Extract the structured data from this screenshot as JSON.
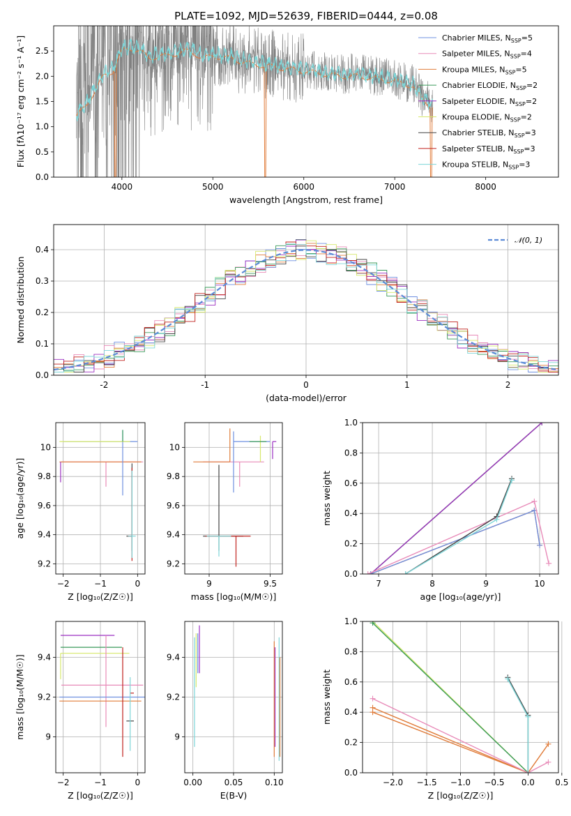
{
  "chart_data": [
    {
      "type": "line",
      "title": "PLATE=1092, MJD=52639, FIBERID=0444, z=0.08",
      "xlabel": "wavelength [Angstrom, rest frame]",
      "ylabel": "Flux [f$_\\lambda$10$^{-17}$ erg cm$^{-2}$ s$^{-1}$ A$^{-1}$]",
      "ylabel_display": "Flux [fλ10⁻¹⁷ erg cm⁻² s⁻¹ A⁻¹]",
      "xlim": [
        3250,
        8800
      ],
      "ylim": [
        0,
        3.0
      ],
      "xticks": [
        4000,
        5000,
        6000,
        7000,
        8000
      ],
      "yticks": [
        0.0,
        0.5,
        1.0,
        1.5,
        2.0,
        2.5
      ],
      "grid": false,
      "legend_position": "right",
      "legend": [
        {
          "text": "Chabrier MILES, N",
          "sub": "SSP",
          "tail": "=5",
          "color": "#6e8fe0"
        },
        {
          "text": "Salpeter MILES, N",
          "sub": "SSP",
          "tail": "=4",
          "color": "#e88ab8"
        },
        {
          "text": "Kroupa MILES, N",
          "sub": "SSP",
          "tail": "=5",
          "color": "#e07b39"
        },
        {
          "text": "Chabrier ELODIE, N",
          "sub": "SSP",
          "tail": "=2",
          "color": "#3a9a5a"
        },
        {
          "text": "Salpeter ELODIE, N",
          "sub": "SSP",
          "tail": "=2",
          "color": "#9b2fc0"
        },
        {
          "text": "Kroupa ELODIE, N",
          "sub": "SSP",
          "tail": "=2",
          "color": "#d6e86a"
        },
        {
          "text": "Chabrier STELIB, N",
          "sub": "SSP",
          "tail": "=3",
          "color": "#444444"
        },
        {
          "text": "Salpeter STELIB, N",
          "sub": "SSP",
          "tail": "=3",
          "color": "#c0201c"
        },
        {
          "text": "Kroupa STELIB, N",
          "sub": "SSP",
          "tail": "=3",
          "color": "#7dd6d8"
        }
      ],
      "data_color": "#808080",
      "model_color": "#7dd6d8",
      "continuum": {
        "x": [
          3500,
          3600,
          3700,
          3800,
          3900,
          4000,
          4100,
          4200,
          4300,
          4400,
          4500,
          4600,
          4700,
          4800,
          4900,
          5000,
          5200,
          5400,
          5600,
          5800,
          6000,
          6200,
          6400,
          6600,
          6800,
          7000,
          7200,
          7300,
          7400
        ],
        "y": [
          1.25,
          1.45,
          1.75,
          2.05,
          2.15,
          2.55,
          2.6,
          2.55,
          2.4,
          2.45,
          2.45,
          2.5,
          2.55,
          2.5,
          2.4,
          2.45,
          2.4,
          2.3,
          2.25,
          2.2,
          2.15,
          2.1,
          2.05,
          2.05,
          2.0,
          1.95,
          1.85,
          1.6,
          1.45
        ]
      }
    },
    {
      "type": "line",
      "xlabel": "(data-model)/error",
      "ylabel": "Normed distribution",
      "xlim": [
        -2.5,
        2.5
      ],
      "ylim": [
        0,
        0.48
      ],
      "xticks": [
        -2,
        -1,
        0,
        1,
        2
      ],
      "yticks": [
        0.0,
        0.1,
        0.2,
        0.3,
        0.4
      ],
      "grid": true,
      "legend": [
        {
          "label": "𝒩(0, 1)",
          "color": "#5b8bd6"
        }
      ],
      "legend_position": "top-right",
      "gauss_mu": 0,
      "gauss_sigma": 1,
      "bin_width": 0.1
    },
    {
      "type": "scatter",
      "xlabel": "Z [log₁₀(Z/Z☉)]",
      "ylabel": "age  [log₁₀(age/yr)]",
      "xlim": [
        -2.2,
        0.2
      ],
      "ylim": [
        9.13,
        10.17
      ],
      "xticks": [
        -2,
        -1,
        0
      ],
      "xticklabels": [
        "−2",
        "−1",
        "0"
      ],
      "yticks": [
        9.2,
        9.4,
        9.6,
        9.8,
        10.0
      ],
      "grid": true,
      "points": [
        {
          "x": -0.15,
          "xerr": [
            0.15,
            0.0
          ],
          "y": 9.39,
          "yerr": [
            0.1,
            0.5
          ],
          "color": "#444444"
        },
        {
          "x": -0.15,
          "xerr": [
            0.1,
            0.0
          ],
          "y": 9.39,
          "yerr": [
            0.17,
            0.47
          ],
          "color": "#c0201c"
        },
        {
          "x": -0.15,
          "xerr": [
            0.1,
            0.1
          ],
          "y": 9.39,
          "yerr": [
            0.15,
            0.45
          ],
          "color": "#7dd6d8"
        },
        {
          "x": -0.85,
          "xerr": [
            1.2,
            1.0
          ],
          "y": 9.9,
          "yerr": [
            0.17,
            0.0
          ],
          "color": "#e88ab8"
        },
        {
          "x": -1.0,
          "xerr": [
            1.1,
            1.1
          ],
          "y": 9.9,
          "yerr": [
            0.0,
            0.0
          ],
          "color": "#e07b39"
        },
        {
          "x": -0.4,
          "xerr": [
            1.6,
            0.4
          ],
          "y": 10.04,
          "yerr": [
            0.37,
            0.08
          ],
          "color": "#6e8fe0"
        },
        {
          "x": -1.0,
          "xerr": [
            1.1,
            0.8
          ],
          "y": 10.04,
          "yerr": [
            0.0,
            0.0
          ],
          "color": "#d6e86a"
        },
        {
          "x": -2.07,
          "xerr": [
            0.0,
            0.0
          ],
          "y": 9.9,
          "yerr": [
            0.14,
            0.0
          ],
          "color": "#9b2fc0"
        },
        {
          "x": -0.4,
          "xerr": [
            0.0,
            0.0
          ],
          "y": 10.04,
          "yerr": [
            0.0,
            0.08
          ],
          "color": "#3a9a5a"
        }
      ]
    },
    {
      "type": "scatter",
      "xlabel": "mass [log₁₀(M/M☉)]",
      "ylabel": "",
      "xlim": [
        8.8,
        9.6
      ],
      "ylim": [
        9.13,
        10.17
      ],
      "xticks": [
        9.0,
        9.5
      ],
      "yticks": [
        9.2,
        9.4,
        9.6,
        9.8,
        10.0
      ],
      "grid": true,
      "points": [
        {
          "x": 9.08,
          "xerr": [
            0.13,
            0.2
          ],
          "y": 9.39,
          "yerr": [
            0.1,
            0.49
          ],
          "color": "#444444"
        },
        {
          "x": 9.22,
          "xerr": [
            0.25,
            0.12
          ],
          "y": 9.39,
          "yerr": [
            0.21,
            0.0
          ],
          "color": "#c0201c"
        },
        {
          "x": 9.08,
          "xerr": [
            0.1,
            0.1
          ],
          "y": 9.39,
          "yerr": [
            0.14,
            0.0
          ],
          "color": "#7dd6d8"
        },
        {
          "x": 9.25,
          "xerr": [
            0.3,
            0.2
          ],
          "y": 9.9,
          "yerr": [
            0.17,
            0.0
          ],
          "color": "#e88ab8"
        },
        {
          "x": 9.17,
          "xerr": [
            0.3,
            0.0
          ],
          "y": 9.9,
          "yerr": [
            0.0,
            0.23
          ],
          "color": "#e07b39"
        },
        {
          "x": 9.2,
          "xerr": [
            0.0,
            0.3
          ],
          "y": 10.04,
          "yerr": [
            0.35,
            0.07
          ],
          "color": "#6e8fe0"
        },
        {
          "x": 9.42,
          "xerr": [
            0.0,
            0.0
          ],
          "y": 10.04,
          "yerr": [
            0.14,
            0.04
          ],
          "color": "#d6e86a"
        },
        {
          "x": 9.52,
          "xerr": [
            0.0,
            0.03
          ],
          "y": 10.04,
          "yerr": [
            0.12,
            0.0
          ],
          "color": "#9b2fc0"
        },
        {
          "x": 9.43,
          "xerr": [
            0.1,
            0.04
          ],
          "y": 10.04,
          "yerr": [
            0.0,
            0.0
          ],
          "color": "#3a9a5a"
        }
      ]
    },
    {
      "type": "line",
      "xlabel": "age  [log₁₀(age/yr)]",
      "ylabel": "mass weight",
      "xlim": [
        6.7,
        10.35
      ],
      "ylim": [
        0,
        1.0
      ],
      "xticks": [
        7,
        8,
        9,
        10
      ],
      "yticks": [
        0.0,
        0.2,
        0.4,
        0.6,
        0.8,
        1.0
      ],
      "grid": true,
      "series": [
        {
          "color": "#d6e86a",
          "x": [
            6.85,
            10.04
          ],
          "y": [
            0.0,
            1.0
          ]
        },
        {
          "color": "#3a9a5a",
          "x": [
            6.85,
            10.04
          ],
          "y": [
            0.0,
            1.0
          ]
        },
        {
          "color": "#9b2fc0",
          "x": [
            6.85,
            10.04
          ],
          "y": [
            0.0,
            1.0
          ]
        },
        {
          "color": "#e07b39",
          "x": [
            6.85,
            9.9,
            10.0
          ],
          "y": [
            0.0,
            0.42,
            0.19
          ]
        },
        {
          "color": "#6e8fe0",
          "x": [
            6.85,
            9.9,
            10.0
          ],
          "y": [
            0.0,
            0.42,
            0.19
          ]
        },
        {
          "color": "#e88ab8",
          "x": [
            6.8,
            9.9,
            10.17
          ],
          "y": [
            0.0,
            0.48,
            0.07
          ]
        },
        {
          "color": "#444444",
          "x": [
            7.5,
            9.2,
            9.48
          ],
          "y": [
            0.0,
            0.38,
            0.63
          ]
        },
        {
          "color": "#7dd6d8",
          "x": [
            7.5,
            9.2,
            9.48
          ],
          "y": [
            0.0,
            0.36,
            0.62
          ]
        }
      ]
    },
    {
      "type": "scatter",
      "xlabel": "Z [log₁₀(Z/Z☉)]",
      "ylabel": "mass [log₁₀(M/M☉)]",
      "xlim": [
        -2.2,
        0.2
      ],
      "ylim": [
        8.82,
        9.58
      ],
      "xticks": [
        -2,
        -1,
        0
      ],
      "xticklabels": [
        "−2",
        "−1",
        "0"
      ],
      "yticks": [
        9.0,
        9.2,
        9.4
      ],
      "grid": true,
      "points": [
        {
          "x": -2.07,
          "xerr": [
            0.0,
            1.45
          ],
          "y": 9.51,
          "yerr": [
            0.0,
            0.0
          ],
          "color": "#9b2fc0"
        },
        {
          "x": -2.07,
          "xerr": [
            0.0,
            1.65
          ],
          "y": 9.45,
          "yerr": [
            0.0,
            0.0
          ],
          "color": "#3a9a5a"
        },
        {
          "x": -2.07,
          "xerr": [
            0.0,
            1.85
          ],
          "y": 9.42,
          "yerr": [
            0.13,
            0.0
          ],
          "color": "#d6e86a"
        },
        {
          "x": -0.85,
          "xerr": [
            1.2,
            1.0
          ],
          "y": 9.26,
          "yerr": [
            0.21,
            0.25
          ],
          "color": "#e88ab8"
        },
        {
          "x": -1.0,
          "xerr": [
            1.1,
            1.2
          ],
          "y": 9.2,
          "yerr": [
            0.0,
            0.0
          ],
          "color": "#6e8fe0"
        },
        {
          "x": -1.0,
          "xerr": [
            1.1,
            1.1
          ],
          "y": 9.18,
          "yerr": [
            0.0,
            0.0
          ],
          "color": "#e07b39"
        },
        {
          "x": -0.2,
          "xerr": [
            0.0,
            0.1
          ],
          "y": 9.22,
          "yerr": [
            0.0,
            0.0
          ],
          "color": "#c0201c"
        },
        {
          "x": -0.2,
          "xerr": [
            0.1,
            0.1
          ],
          "y": 9.08,
          "yerr": [
            0.0,
            0.0
          ],
          "color": "#444444"
        },
        {
          "x": -0.4,
          "xerr": [
            0.0,
            0.0
          ],
          "y": 9.1,
          "yerr": [
            0.2,
            0.35
          ],
          "color": "#c0201c"
        },
        {
          "x": -0.2,
          "xerr": [
            0.0,
            0.0
          ],
          "y": 9.18,
          "yerr": [
            0.25,
            0.12
          ],
          "color": "#7dd6d8"
        }
      ]
    },
    {
      "type": "scatter",
      "xlabel": "E(B-V)",
      "ylabel": "",
      "xlim": [
        -0.01,
        0.11
      ],
      "ylim": [
        8.82,
        9.58
      ],
      "xticks": [
        0.0,
        0.05,
        0.1
      ],
      "xticklabels": [
        "0.00",
        "0.05",
        "0.10"
      ],
      "yticks": [
        9.0,
        9.2,
        9.4
      ],
      "grid": true,
      "points": [
        {
          "x": 0.002,
          "xerr": [
            0,
            0
          ],
          "y": 9.3,
          "yerr": [
            0.35,
            0.2
          ],
          "color": "#7dd6d8"
        },
        {
          "x": 0.004,
          "xerr": [
            0,
            0
          ],
          "y": 9.35,
          "yerr": [
            0.1,
            0.17
          ],
          "color": "#d6e86a"
        },
        {
          "x": 0.006,
          "xerr": [
            0,
            0
          ],
          "y": 9.4,
          "yerr": [
            0.08,
            0.12
          ],
          "color": "#6e8fe0"
        },
        {
          "x": 0.008,
          "xerr": [
            0,
            0
          ],
          "y": 9.42,
          "yerr": [
            0.1,
            0.14
          ],
          "color": "#9b2fc0"
        },
        {
          "x": 0.1,
          "xerr": [
            0,
            0
          ],
          "y": 9.2,
          "yerr": [
            0.3,
            0.28
          ],
          "color": "#e07b39"
        },
        {
          "x": 0.101,
          "xerr": [
            0,
            0
          ],
          "y": 9.15,
          "yerr": [
            0.2,
            0.3
          ],
          "color": "#9b2fc0"
        },
        {
          "x": 0.106,
          "xerr": [
            0,
            0
          ],
          "y": 9.2,
          "yerr": [
            0.32,
            0.3
          ],
          "color": "#7dd6d8"
        },
        {
          "x": 0.107,
          "xerr": [
            0,
            0
          ],
          "y": 9.2,
          "yerr": [
            0.3,
            0.2
          ],
          "color": "#e07b39"
        }
      ]
    },
    {
      "type": "line",
      "xlabel": "Z [log₁₀(Z/Z☉)]",
      "ylabel": "mass weight",
      "xlim": [
        -2.45,
        0.45
      ],
      "ylim": [
        0,
        1.0
      ],
      "xticks": [
        -2.0,
        -1.5,
        -1.0,
        -0.5,
        0.0,
        0.5
      ],
      "xticklabels": [
        "−2.0",
        "−1.5",
        "−1.0",
        "−0.5",
        "0.0",
        "0.5"
      ],
      "yticks": [
        0.0,
        0.2,
        0.4,
        0.6,
        0.8,
        1.0
      ],
      "grid": true,
      "series": [
        {
          "color": "#d6e86a",
          "x": [
            -2.3,
            0.0
          ],
          "y": [
            1.0,
            0.0
          ]
        },
        {
          "color": "#3a9a5a",
          "x": [
            -2.3,
            0.0
          ],
          "y": [
            0.99,
            0.0
          ]
        },
        {
          "color": "#e07b39",
          "x": [
            -2.3,
            0.0,
            0.3
          ],
          "y": [
            0.43,
            0.0,
            0.19
          ]
        },
        {
          "color": "#e07b39",
          "x": [
            -2.3,
            0.0
          ],
          "y": [
            0.4,
            0.0
          ]
        },
        {
          "color": "#e88ab8",
          "x": [
            -2.3,
            0.0,
            0.3
          ],
          "y": [
            0.49,
            0.0,
            0.07
          ]
        },
        {
          "color": "#444444",
          "x": [
            -0.3,
            0.0,
            0.0
          ],
          "y": [
            0.63,
            0.38,
            0.0
          ]
        },
        {
          "color": "#7dd6d8",
          "x": [
            -0.3,
            0.0,
            0.0
          ],
          "y": [
            0.62,
            0.37,
            0.0
          ]
        }
      ]
    }
  ]
}
